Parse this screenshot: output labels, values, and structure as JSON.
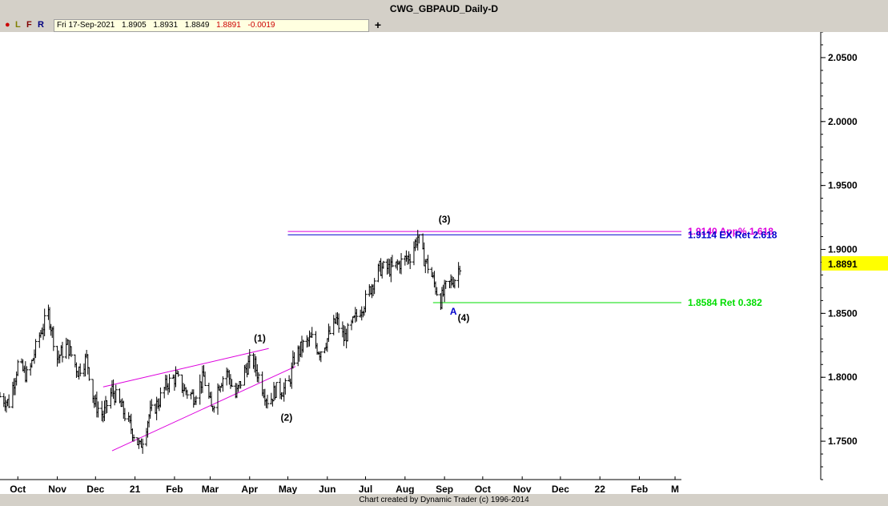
{
  "title": "CWG_GBPAUD_Daily-D",
  "toolbar": {
    "buttons": [
      {
        "label": "●",
        "color": "#cc0000"
      },
      {
        "label": "L",
        "color": "#808000"
      },
      {
        "label": "F",
        "color": "#800000"
      },
      {
        "label": "R",
        "color": "#000080"
      }
    ],
    "ohlc": {
      "date": "Fri 17-Sep-2021",
      "open": "1.8905",
      "high": "1.8931",
      "low": "1.8849",
      "close": "1.8891",
      "change": "-0.0019"
    },
    "plus_label": "+"
  },
  "footer": "Chart created by Dynamic Trader  (c) 1996-2014",
  "colors": {
    "background": "#ffffff",
    "bars": "#000000",
    "wedge_lines": "#dd00dd",
    "magenta_level": "#dd00dd",
    "blue_level": "#0000cc",
    "green_level": "#00dd00",
    "last_price_tag": "#ffff00"
  },
  "chart_data": {
    "type": "ohlc",
    "title": "CWG_GBPAUD_Daily-D",
    "ylim": [
      1.72,
      2.07
    ],
    "y_ticks": [
      "2.0500",
      "2.0000",
      "1.9500",
      "1.9000",
      "1.8500",
      "1.8000",
      "1.7500"
    ],
    "x_ticks": [
      {
        "label": "Oct",
        "day": 4
      },
      {
        "label": "Nov",
        "day": 35
      },
      {
        "label": "Dec",
        "day": 65
      },
      {
        "label": "21",
        "day": 96
      },
      {
        "label": "Feb",
        "day": 127
      },
      {
        "label": "Mar",
        "day": 155
      },
      {
        "label": "Apr",
        "day": 186
      },
      {
        "label": "May",
        "day": 216
      },
      {
        "label": "Jun",
        "day": 247
      },
      {
        "label": "Jul",
        "day": 277
      },
      {
        "label": "Aug",
        "day": 308
      },
      {
        "label": "Sep",
        "day": 339
      },
      {
        "label": "Oct",
        "day": 369
      },
      {
        "label": "Nov",
        "day": 400
      },
      {
        "label": "Dec",
        "day": 430
      },
      {
        "label": "22",
        "day": 461
      },
      {
        "label": "Feb",
        "day": 492
      },
      {
        "label": "M",
        "day": 520
      }
    ],
    "x_range_days": [
      -10,
      525
    ],
    "price_path": [
      [
        -10,
        1.785
      ],
      [
        -3,
        1.78
      ],
      [
        4,
        1.81
      ],
      [
        12,
        1.8
      ],
      [
        20,
        1.83
      ],
      [
        28,
        1.85
      ],
      [
        35,
        1.815
      ],
      [
        43,
        1.825
      ],
      [
        51,
        1.805
      ],
      [
        58,
        1.815
      ],
      [
        64,
        1.78
      ],
      [
        71,
        1.77
      ],
      [
        78,
        1.79
      ],
      [
        86,
        1.775
      ],
      [
        93,
        1.76
      ],
      [
        100,
        1.745
      ],
      [
        107,
        1.77
      ],
      [
        114,
        1.78
      ],
      [
        121,
        1.795
      ],
      [
        128,
        1.8
      ],
      [
        135,
        1.79
      ],
      [
        142,
        1.785
      ],
      [
        150,
        1.8
      ],
      [
        156,
        1.775
      ],
      [
        162,
        1.795
      ],
      [
        168,
        1.805
      ],
      [
        175,
        1.785
      ],
      [
        182,
        1.805
      ],
      [
        188,
        1.815
      ],
      [
        195,
        1.795
      ],
      [
        201,
        1.78
      ],
      [
        206,
        1.79
      ],
      [
        212,
        1.79
      ],
      [
        217,
        1.795
      ],
      [
        221,
        1.815
      ],
      [
        228,
        1.825
      ],
      [
        235,
        1.83
      ],
      [
        241,
        1.82
      ],
      [
        247,
        1.83
      ],
      [
        254,
        1.845
      ],
      [
        260,
        1.83
      ],
      [
        266,
        1.84
      ],
      [
        271,
        1.85
      ],
      [
        277,
        1.86
      ],
      [
        283,
        1.875
      ],
      [
        288,
        1.885
      ],
      [
        292,
        1.885
      ],
      [
        298,
        1.885
      ],
      [
        305,
        1.89
      ],
      [
        312,
        1.895
      ],
      [
        318,
        1.91
      ],
      [
        322,
        1.895
      ],
      [
        327,
        1.885
      ],
      [
        332,
        1.87
      ],
      [
        336,
        1.86
      ],
      [
        340,
        1.87
      ],
      [
        345,
        1.875
      ],
      [
        349,
        1.88
      ],
      [
        351,
        1.8891
      ]
    ],
    "last_price": "1.8891",
    "levels": [
      {
        "value": 1.914,
        "label": "1.9140 App% 1.618",
        "color": "#dd00dd",
        "start_day": 216
      },
      {
        "value": 1.9114,
        "label": "1.9114 EX Ret 2.618",
        "color": "#0000cc",
        "start_day": 216
      },
      {
        "value": 1.8584,
        "label": "1.8584 Ret 0.382",
        "color": "#00dd00",
        "start_day": 330
      }
    ],
    "trendlines": [
      {
        "from": [
          71,
          1.7925
        ],
        "to": [
          201,
          1.8225
        ]
      },
      {
        "from": [
          78,
          1.7425
        ],
        "to": [
          222,
          1.8085
        ]
      }
    ],
    "annotations": [
      {
        "label": "(1)",
        "day": 194,
        "value": 1.8305,
        "color": "#000000"
      },
      {
        "label": "(2)",
        "day": 215,
        "value": 1.7685,
        "color": "#000000"
      },
      {
        "label": "(3)",
        "day": 339,
        "value": 1.9235,
        "color": "#000000"
      },
      {
        "label": "(4)",
        "day": 354,
        "value": 1.8465,
        "color": "#000000"
      },
      {
        "label": "A",
        "day": 346,
        "value": 1.8515,
        "color": "#0000cc"
      }
    ]
  }
}
